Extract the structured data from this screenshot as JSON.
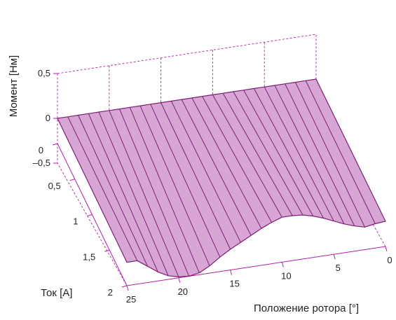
{
  "chart_data": {
    "type": "surface3d",
    "zlabel": "Момент [Нм]",
    "ylabel": "Ток [А]",
    "xlabel": "Положение ротора [°]",
    "z_ticks": [
      "0,5",
      "0",
      "–0,5"
    ],
    "y_ticks": [
      "0",
      "0,5",
      "1",
      "1,5",
      "2"
    ],
    "x_ticks": [
      "25",
      "20",
      "15",
      "10",
      "5",
      "0"
    ],
    "x_range": [
      0,
      25
    ],
    "y_range": [
      0,
      2
    ],
    "z_range": [
      -0.5,
      0.5
    ],
    "grid": true,
    "surface_color": "#d8a6d5",
    "edge_color": "#7a1f75",
    "axis_color": "#b01ea8",
    "rotor_position_deg": [
      25,
      24,
      23,
      22,
      21,
      20,
      19,
      18,
      17,
      16,
      15,
      14,
      13,
      12,
      11,
      10,
      9,
      8,
      7,
      6,
      5,
      4,
      3,
      2,
      1,
      0
    ],
    "torque_at_2A_Nm": [
      -0.02,
      -0.02,
      -0.1,
      -0.18,
      -0.24,
      -0.27,
      -0.28,
      -0.26,
      -0.2,
      -0.12,
      -0.05,
      0.01,
      0.07,
      0.13,
      0.18,
      0.22,
      0.22,
      0.21,
      0.18,
      0.14,
      0.09,
      0.04,
      0.0,
      -0.03,
      -0.01,
      0.0
    ],
    "torque_at_0A_Nm": 0
  }
}
